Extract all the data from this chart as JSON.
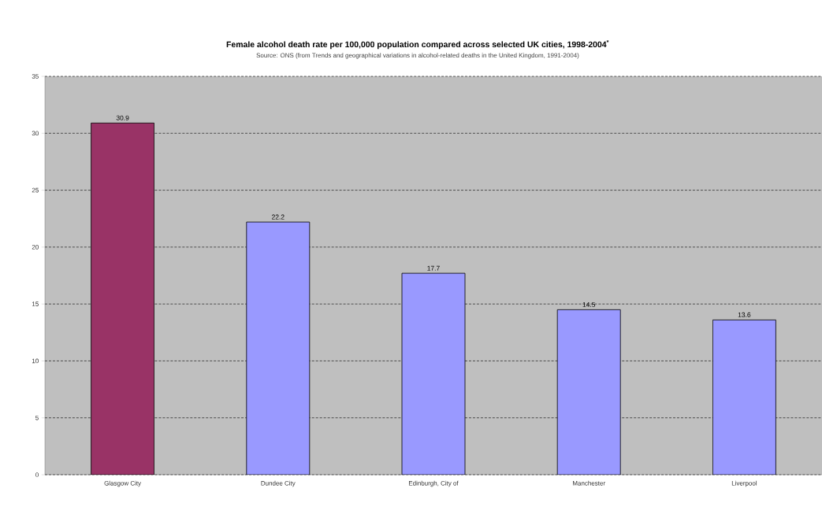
{
  "chart_data": {
    "type": "bar",
    "title": "Female alcohol death rate per 100,000 population compared across selected UK cities, 1998-2004$^{*}$",
    "subtitle": "Source: ONS (from Trends and geographical variations in alcohol-related deaths in the United Kingdom, 1991-2004)",
    "categories": [
      "Glasgow City",
      "Dundee City",
      "Edinburgh, City of",
      "Manchester",
      "Liverpool"
    ],
    "values": [
      30.9,
      22.2,
      17.7,
      14.5,
      13.6
    ],
    "colors": [
      "#993366",
      "#9999ff",
      "#9999ff",
      "#9999ff",
      "#9999ff"
    ],
    "ylim": [
      0,
      35
    ],
    "yticks": [
      0,
      5,
      10,
      15,
      20,
      25,
      30,
      35
    ],
    "grid": "y",
    "data_labels": true
  }
}
